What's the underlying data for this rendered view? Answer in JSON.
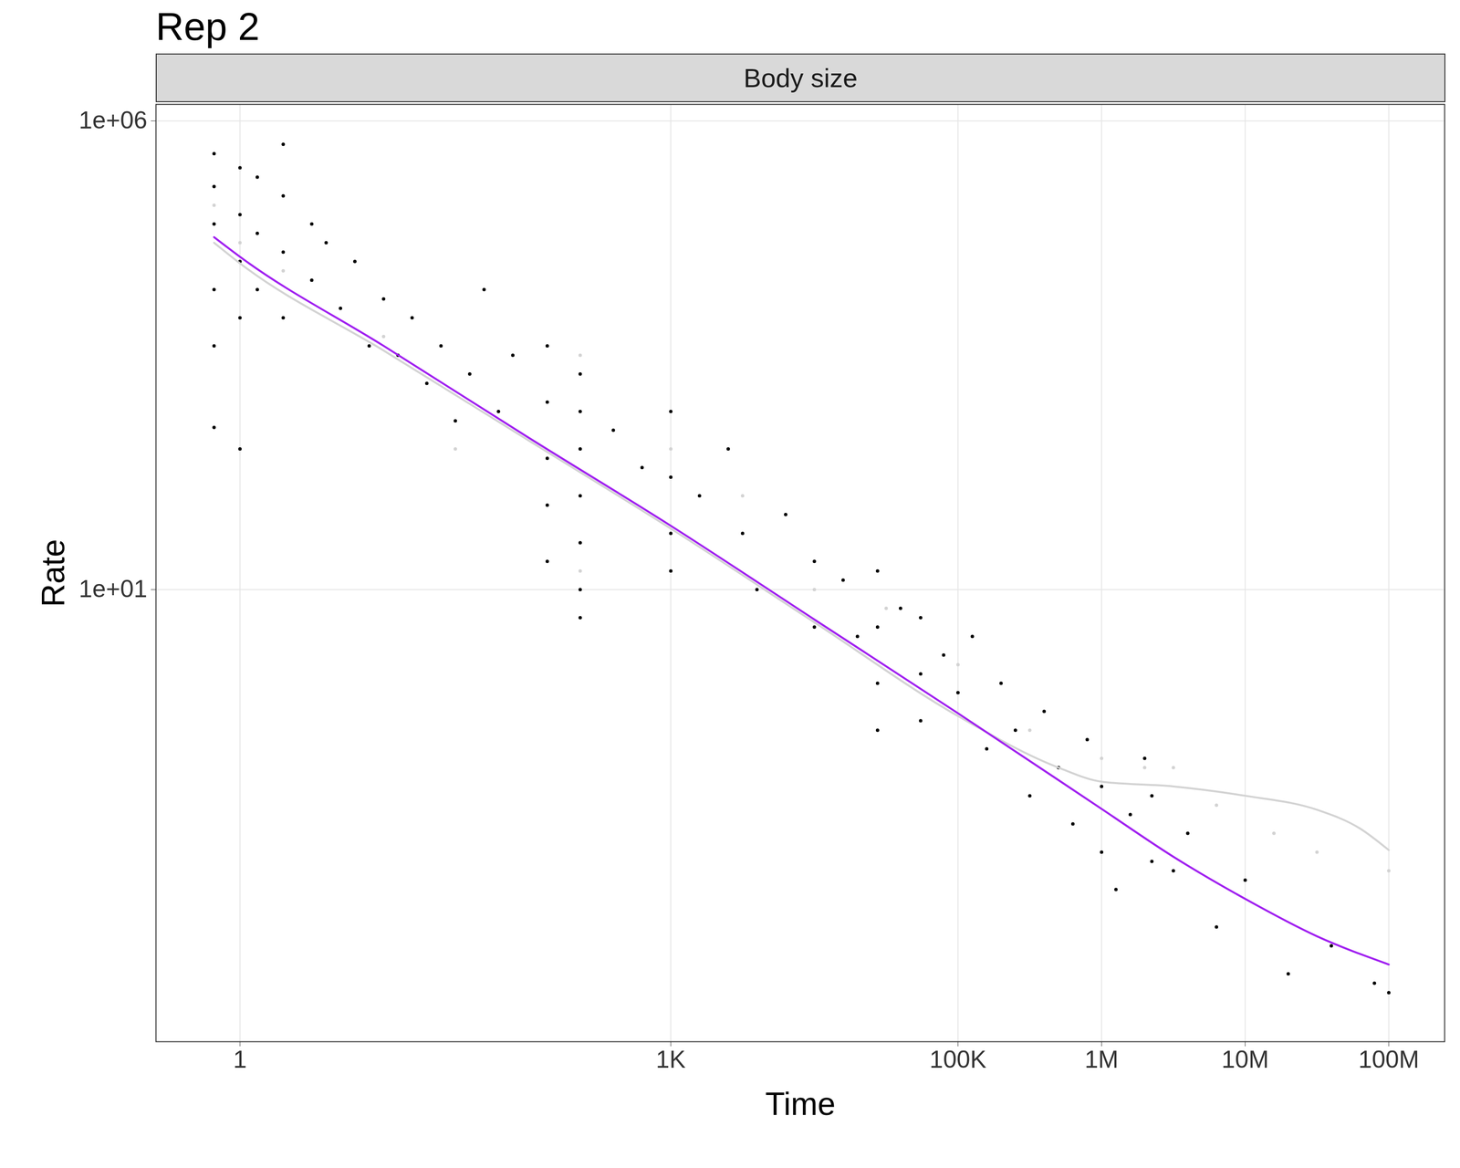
{
  "chart_data": {
    "type": "scatter",
    "title": "Rep 2",
    "panel_title": "Body size",
    "xlabel": "Time",
    "ylabel": "Rate",
    "log": true,
    "grid": true,
    "xlim": [
      0.26,
      245000000
    ],
    "ylim": [
      0.00015,
      1500000
    ],
    "xticks": [
      1,
      {
        "value": 1000,
        "label": "1K"
      },
      {
        "value": 100000,
        "label": "100K"
      },
      {
        "value": 1000000,
        "label": "1M"
      },
      {
        "value": 10000000,
        "label": "10M"
      },
      {
        "value": 100000000,
        "label": "100M"
      }
    ],
    "yticks": [
      {
        "value": 10,
        "label": "1e+01"
      },
      {
        "value": 1000000,
        "label": "1e+06"
      }
    ],
    "series": [
      {
        "type": "scatter",
        "color": "#d3d3d3",
        "x": [
          0.66,
          1,
          2,
          10,
          31.6,
          234,
          234,
          1000,
          3162,
          10000,
          31620,
          100000,
          316200,
          1000000,
          1995000,
          3162000,
          6310000,
          15850000,
          31620000,
          100000000
        ],
        "values": [
          125900,
          50120,
          25120,
          5012,
          316,
          3162,
          15.8,
          316,
          100,
          10,
          6.31,
          1.58,
          0.316,
          0.158,
          0.126,
          0.126,
          0.0501,
          0.0251,
          0.0158,
          0.01
        ]
      },
      {
        "type": "scatter",
        "color": "#000000",
        "x": [
          0.66,
          0.66,
          0.66,
          0.66,
          0.66,
          0.66,
          1,
          1,
          1,
          1,
          1,
          1.32,
          1.32,
          1.32,
          2,
          2,
          2,
          2,
          3.16,
          3.16,
          3.98,
          5.01,
          6.31,
          7.94,
          10,
          12.6,
          15.8,
          20,
          25.1,
          31.6,
          39.8,
          50.1,
          63.1,
          79.4,
          138,
          138,
          138,
          138,
          138,
          234,
          234,
          234,
          234,
          234,
          234,
          234,
          398,
          631,
          1000,
          1000,
          1000,
          1000,
          1585,
          2512,
          3162,
          3981,
          6310,
          10000,
          10000,
          15850,
          19950,
          27540,
          27540,
          27540,
          27540,
          39810,
          54950,
          54950,
          54950,
          79430,
          100000,
          125900,
          158500,
          199500,
          251200,
          316200,
          398100,
          501200,
          631000,
          794300,
          1000000,
          1000000,
          1259000,
          1585000,
          1995000,
          2239000,
          2239000,
          3162000,
          3981000,
          6310000,
          10000000,
          19950000,
          39810000,
          79430000,
          100000000
        ],
        "values": [
          446700,
          199500,
          79430,
          15850,
          3981,
          537,
          316200,
          100000,
          31620,
          7943,
          316,
          251200,
          63100,
          15850,
          562300,
          158500,
          39810,
          7943,
          79430,
          19950,
          50120,
          10000,
          31620,
          3981,
          12590,
          3162,
          7943,
          1585,
          3981,
          631,
          1995,
          15850,
          794,
          3162,
          3981,
          1000,
          251,
          79.4,
          20,
          1995,
          794,
          316,
          100,
          31.6,
          10,
          5.01,
          501,
          200,
          794,
          158,
          39.8,
          15.8,
          100,
          316,
          39.8,
          10,
          63.1,
          20,
          3.98,
          12.6,
          3.16,
          15.8,
          3.98,
          1,
          0.316,
          6.31,
          5.01,
          1.26,
          0.398,
          2,
          0.794,
          3.16,
          0.2,
          1,
          0.316,
          0.0631,
          0.501,
          0.126,
          0.0316,
          0.251,
          0.0794,
          0.0158,
          0.00631,
          0.0398,
          0.158,
          0.0126,
          0.0631,
          0.01,
          0.0251,
          0.00251,
          0.00794,
          0.000794,
          0.00158,
          0.000631,
          0.000501
        ]
      },
      {
        "type": "line",
        "color": "#d3d3d3",
        "x": [
          0.66,
          1,
          10,
          100,
          1000,
          10000,
          100000,
          501200,
          1000000,
          3162000,
          10000000,
          31620000,
          63100000,
          100000000
        ],
        "values": [
          50120,
          30200,
          3548,
          398,
          44.7,
          4.47,
          0.447,
          0.126,
          0.0891,
          0.0794,
          0.0631,
          0.0447,
          0.0282,
          0.0166
        ]
      },
      {
        "type": "line",
        "color": "#a020f0",
        "x": [
          0.66,
          1,
          10,
          100,
          1000,
          10000,
          100000,
          1000000,
          3162000,
          10000000,
          31620000,
          100000000
        ],
        "values": [
          57540,
          35480,
          3981,
          426.6,
          47.9,
          4.79,
          0.479,
          0.0457,
          0.0141,
          0.00501,
          0.002,
          0.001
        ]
      }
    ]
  }
}
